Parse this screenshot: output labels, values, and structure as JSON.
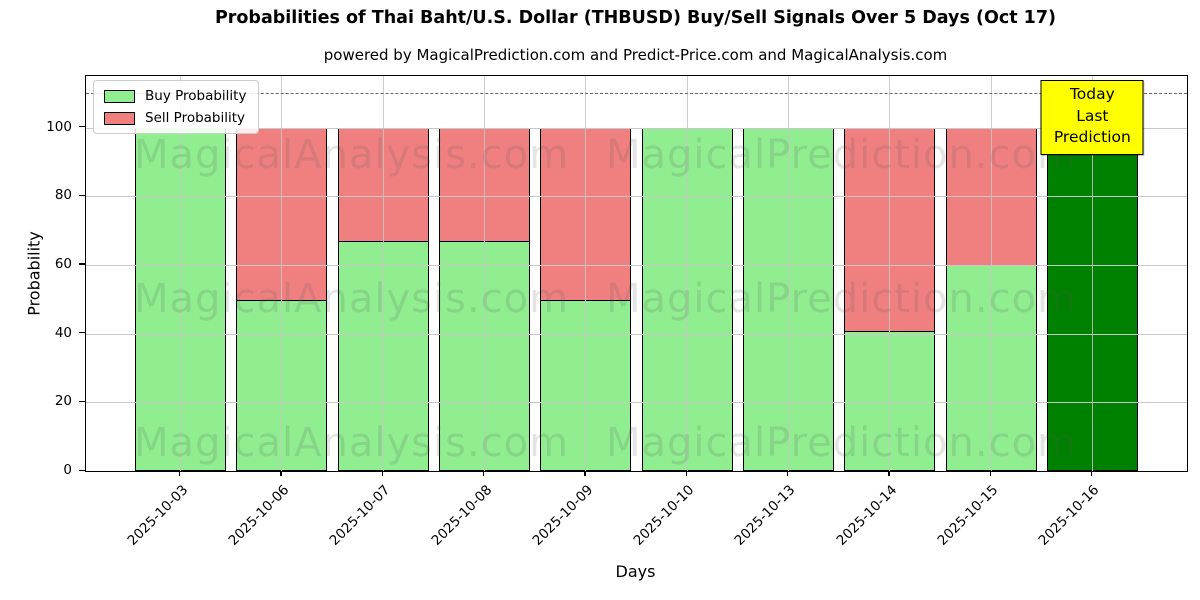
{
  "title": "Probabilities of Thai Baht/U.S. Dollar (THBUSD) Buy/Sell Signals Over 5 Days (Oct 17)",
  "subtitle": "powered by MagicalPrediction.com and Predict-Price.com and MagicalAnalysis.com",
  "watermarks": {
    "left_text": "MagicalAnalysis.com",
    "right_text": "MagicalPrediction.com"
  },
  "annotation": {
    "line1": "Today",
    "line2": "Last Prediction",
    "bg_color": "#ffff00"
  },
  "colors": {
    "buy": "#90ee90",
    "sell": "#f08080",
    "today_bar": "#008000",
    "bar_edge": "#000000",
    "grid": "#c8c8c8",
    "dashed_line": "#666666"
  },
  "chart_data": {
    "type": "bar",
    "stacked": true,
    "title": "Probabilities of Thai Baht/U.S. Dollar (THBUSD) Buy/Sell Signals Over 5 Days (Oct 17)",
    "xlabel": "Days",
    "ylabel": "Probability",
    "categories": [
      "2025-10-03",
      "2025-10-06",
      "2025-10-07",
      "2025-10-08",
      "2025-10-09",
      "2025-10-10",
      "2025-10-13",
      "2025-10-14",
      "2025-10-15",
      "2025-10-16"
    ],
    "series": [
      {
        "name": "Buy Probability",
        "color": "#90ee90",
        "values": [
          100,
          50,
          67,
          67,
          50,
          100,
          100,
          41,
          60,
          100
        ]
      },
      {
        "name": "Sell Probability",
        "color": "#f08080",
        "values": [
          0,
          50,
          33,
          33,
          50,
          0,
          0,
          59,
          40,
          0
        ]
      }
    ],
    "today_bar_index": 9,
    "today_bar_color": "#008000",
    "yticks": [
      0,
      20,
      40,
      60,
      80,
      100
    ],
    "ylim": [
      0,
      115
    ],
    "dashed_line_y": 110,
    "grid": true,
    "legend_position": "upper left"
  }
}
